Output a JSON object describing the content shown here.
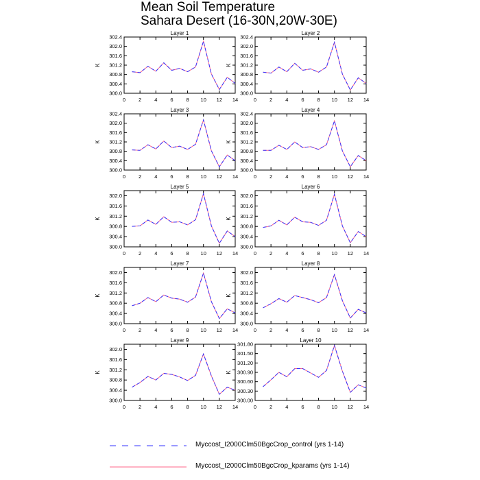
{
  "title_line1": "Mean Soil Temperature",
  "title_line2": "Sahara Desert (16-30N,20W-30E)",
  "legend": [
    {
      "label": "Myccost_I2000Clm50BgcCrop_control (yrs 1-14)",
      "color": "#3333ff",
      "dash": true
    },
    {
      "label": "Myccost_I2000Clm50BgcCrop_kparams (yrs 1-14)",
      "color": "#ff6688",
      "dash": false
    }
  ],
  "chart_data": [
    {
      "type": "line",
      "title": "Layer 1",
      "ylabel": "K",
      "xlim": [
        0,
        14
      ],
      "ylim": [
        300.0,
        302.4
      ],
      "xticks": [
        "0",
        "2",
        "4",
        "6",
        "8",
        "10",
        "12",
        "14"
      ],
      "yticks": [
        "300.0",
        "300.4",
        "300.8",
        "301.2",
        "301.6",
        "302.0",
        "302.4"
      ],
      "x": [
        1,
        2,
        3,
        4,
        5,
        6,
        7,
        8,
        9,
        10,
        11,
        12,
        13,
        14
      ],
      "series": [
        {
          "name": "Myccost_I2000Clm50BgcCrop_control (yrs 1-14)",
          "values": [
            300.92,
            300.88,
            301.15,
            300.94,
            301.3,
            300.98,
            301.06,
            300.92,
            301.12,
            302.22,
            300.82,
            300.16,
            300.68,
            300.42
          ]
        },
        {
          "name": "Myccost_I2000Clm50BgcCrop_kparams (yrs 1-14)",
          "values": [
            300.92,
            300.88,
            301.15,
            300.94,
            301.3,
            300.98,
            301.06,
            300.92,
            301.12,
            302.22,
            300.82,
            300.16,
            300.68,
            300.42
          ]
        }
      ]
    },
    {
      "type": "line",
      "title": "Layer 2",
      "ylabel": "K",
      "xlim": [
        0,
        14
      ],
      "ylim": [
        300.0,
        302.4
      ],
      "xticks": [
        "0",
        "2",
        "4",
        "6",
        "8",
        "10",
        "12",
        "14"
      ],
      "yticks": [
        "300.0",
        "300.4",
        "300.8",
        "301.2",
        "301.6",
        "302.0",
        "302.4"
      ],
      "x": [
        1,
        2,
        3,
        4,
        5,
        6,
        7,
        8,
        9,
        10,
        11,
        12,
        13,
        14
      ],
      "series": [
        {
          "name": "Myccost_I2000Clm50BgcCrop_control (yrs 1-14)",
          "values": [
            300.9,
            300.86,
            301.12,
            300.92,
            301.28,
            300.98,
            301.04,
            300.9,
            301.12,
            302.18,
            300.82,
            300.14,
            300.66,
            300.42
          ]
        },
        {
          "name": "Myccost_I2000Clm50BgcCrop_kparams (yrs 1-14)",
          "values": [
            300.9,
            300.86,
            301.12,
            300.92,
            301.28,
            300.98,
            301.04,
            300.9,
            301.12,
            302.18,
            300.82,
            300.14,
            300.66,
            300.42
          ]
        }
      ]
    },
    {
      "type": "line",
      "title": "Layer 3",
      "ylabel": "K",
      "xlim": [
        0,
        14
      ],
      "ylim": [
        300.0,
        302.4
      ],
      "xticks": [
        "0",
        "2",
        "4",
        "6",
        "8",
        "10",
        "12",
        "14"
      ],
      "yticks": [
        "300.0",
        "300.4",
        "300.8",
        "301.2",
        "301.6",
        "302.0",
        "302.4"
      ],
      "x": [
        1,
        2,
        3,
        4,
        5,
        6,
        7,
        8,
        9,
        10,
        11,
        12,
        13,
        14
      ],
      "series": [
        {
          "name": "Myccost_I2000Clm50BgcCrop_control (yrs 1-14)",
          "values": [
            300.86,
            300.84,
            301.08,
            300.9,
            301.24,
            300.96,
            301.02,
            300.88,
            301.1,
            302.14,
            300.82,
            300.14,
            300.64,
            300.4
          ]
        },
        {
          "name": "Myccost_I2000Clm50BgcCrop_kparams (yrs 1-14)",
          "values": [
            300.86,
            300.84,
            301.08,
            300.9,
            301.24,
            300.96,
            301.02,
            300.88,
            301.1,
            302.14,
            300.82,
            300.14,
            300.64,
            300.4
          ]
        }
      ]
    },
    {
      "type": "line",
      "title": "Layer 4",
      "ylabel": "K",
      "xlim": [
        0,
        14
      ],
      "ylim": [
        300.0,
        302.4
      ],
      "xticks": [
        "0",
        "2",
        "4",
        "6",
        "8",
        "10",
        "12",
        "14"
      ],
      "yticks": [
        "300.0",
        "300.4",
        "300.8",
        "301.2",
        "301.6",
        "302.0",
        "302.4"
      ],
      "x": [
        1,
        2,
        3,
        4,
        5,
        6,
        7,
        8,
        9,
        10,
        11,
        12,
        13,
        14
      ],
      "series": [
        {
          "name": "Myccost_I2000Clm50BgcCrop_control (yrs 1-14)",
          "values": [
            300.84,
            300.84,
            301.06,
            300.88,
            301.2,
            300.96,
            301.0,
            300.88,
            301.08,
            302.1,
            300.82,
            300.14,
            300.62,
            300.4
          ]
        },
        {
          "name": "Myccost_I2000Clm50BgcCrop_kparams (yrs 1-14)",
          "values": [
            300.84,
            300.84,
            301.06,
            300.88,
            301.2,
            300.96,
            301.0,
            300.88,
            301.08,
            302.1,
            300.82,
            300.14,
            300.62,
            300.4
          ]
        }
      ]
    },
    {
      "type": "line",
      "title": "Layer 5",
      "ylabel": "K",
      "xlim": [
        0,
        14
      ],
      "ylim": [
        300.0,
        302.2
      ],
      "xticks": [
        "0",
        "2",
        "4",
        "6",
        "8",
        "10",
        "12",
        "14"
      ],
      "yticks": [
        "300.0",
        "300.4",
        "300.8",
        "301.2",
        "301.6",
        "302.0"
      ],
      "x": [
        1,
        2,
        3,
        4,
        5,
        6,
        7,
        8,
        9,
        10,
        11,
        12,
        13,
        14
      ],
      "series": [
        {
          "name": "Myccost_I2000Clm50BgcCrop_control (yrs 1-14)",
          "values": [
            300.8,
            300.82,
            301.05,
            300.88,
            301.18,
            300.96,
            300.98,
            300.86,
            301.06,
            302.08,
            300.82,
            300.14,
            300.62,
            300.4
          ]
        },
        {
          "name": "Myccost_I2000Clm50BgcCrop_kparams (yrs 1-14)",
          "values": [
            300.8,
            300.82,
            301.05,
            300.88,
            301.18,
            300.96,
            300.98,
            300.86,
            301.06,
            302.08,
            300.82,
            300.14,
            300.62,
            300.4
          ]
        }
      ]
    },
    {
      "type": "line",
      "title": "Layer 6",
      "ylabel": "K",
      "xlim": [
        0,
        14
      ],
      "ylim": [
        300.0,
        302.2
      ],
      "xticks": [
        "0",
        "2",
        "4",
        "6",
        "8",
        "10",
        "12",
        "14"
      ],
      "yticks": [
        "300.0",
        "300.4",
        "300.8",
        "301.2",
        "301.6",
        "302.0"
      ],
      "x": [
        1,
        2,
        3,
        4,
        5,
        6,
        7,
        8,
        9,
        10,
        11,
        12,
        13,
        14
      ],
      "series": [
        {
          "name": "Myccost_I2000Clm50BgcCrop_control (yrs 1-14)",
          "values": [
            300.76,
            300.82,
            301.04,
            300.86,
            301.16,
            300.98,
            300.96,
            300.84,
            301.04,
            302.06,
            300.82,
            300.16,
            300.6,
            300.4
          ]
        },
        {
          "name": "Myccost_I2000Clm50BgcCrop_kparams (yrs 1-14)",
          "values": [
            300.76,
            300.82,
            301.04,
            300.86,
            301.16,
            300.98,
            300.96,
            300.84,
            301.04,
            302.06,
            300.82,
            300.16,
            300.6,
            300.4
          ]
        }
      ]
    },
    {
      "type": "line",
      "title": "Layer 7",
      "ylabel": "K",
      "xlim": [
        0,
        14
      ],
      "ylim": [
        300.0,
        302.2
      ],
      "xticks": [
        "0",
        "2",
        "4",
        "6",
        "8",
        "10",
        "12",
        "14"
      ],
      "yticks": [
        "300.0",
        "300.4",
        "300.8",
        "301.2",
        "301.6",
        "302.0"
      ],
      "x": [
        1,
        2,
        3,
        4,
        5,
        6,
        7,
        8,
        9,
        10,
        11,
        12,
        13,
        14
      ],
      "series": [
        {
          "name": "Myccost_I2000Clm50BgcCrop_control (yrs 1-14)",
          "values": [
            300.7,
            300.8,
            301.02,
            300.86,
            301.12,
            301.0,
            300.96,
            300.84,
            301.04,
            301.98,
            300.86,
            300.2,
            300.58,
            300.42
          ]
        },
        {
          "name": "Myccost_I2000Clm50BgcCrop_kparams (yrs 1-14)",
          "values": [
            300.7,
            300.8,
            301.02,
            300.86,
            301.12,
            301.0,
            300.96,
            300.84,
            301.04,
            301.98,
            300.86,
            300.2,
            300.58,
            300.42
          ]
        }
      ]
    },
    {
      "type": "line",
      "title": "Layer 8",
      "ylabel": "K",
      "xlim": [
        0,
        14
      ],
      "ylim": [
        300.0,
        302.2
      ],
      "xticks": [
        "0",
        "2",
        "4",
        "6",
        "8",
        "10",
        "12",
        "14"
      ],
      "yticks": [
        "300.0",
        "300.4",
        "300.8",
        "301.2",
        "301.6",
        "302.0"
      ],
      "x": [
        1,
        2,
        3,
        4,
        5,
        6,
        7,
        8,
        9,
        10,
        11,
        12,
        13,
        14
      ],
      "series": [
        {
          "name": "Myccost_I2000Clm50BgcCrop_control (yrs 1-14)",
          "values": [
            300.62,
            300.78,
            300.98,
            300.84,
            301.1,
            301.02,
            300.94,
            300.82,
            301.02,
            301.92,
            300.9,
            300.22,
            300.56,
            300.42
          ]
        },
        {
          "name": "Myccost_I2000Clm50BgcCrop_kparams (yrs 1-14)",
          "values": [
            300.62,
            300.78,
            300.98,
            300.84,
            301.1,
            301.02,
            300.94,
            300.82,
            301.02,
            301.92,
            300.9,
            300.22,
            300.56,
            300.42
          ]
        }
      ]
    },
    {
      "type": "line",
      "title": "Layer 9",
      "ylabel": "K",
      "xlim": [
        0,
        14
      ],
      "ylim": [
        300.0,
        302.2
      ],
      "xticks": [
        "0",
        "2",
        "4",
        "6",
        "8",
        "10",
        "12",
        "14"
      ],
      "yticks": [
        "300.0",
        "300.4",
        "300.8",
        "301.2",
        "301.6",
        "302.0"
      ],
      "x": [
        1,
        2,
        3,
        4,
        5,
        6,
        7,
        8,
        9,
        10,
        11,
        12,
        13,
        14
      ],
      "series": [
        {
          "name": "Myccost_I2000Clm50BgcCrop_control (yrs 1-14)",
          "values": [
            300.52,
            300.7,
            300.94,
            300.8,
            301.06,
            301.02,
            300.92,
            300.78,
            300.98,
            301.82,
            300.96,
            300.24,
            300.52,
            300.4
          ]
        },
        {
          "name": "Myccost_I2000Clm50BgcCrop_kparams (yrs 1-14)",
          "values": [
            300.52,
            300.7,
            300.94,
            300.8,
            301.06,
            301.02,
            300.92,
            300.78,
            300.98,
            301.82,
            300.96,
            300.24,
            300.52,
            300.4
          ]
        }
      ]
    },
    {
      "type": "line",
      "title": "Layer 10",
      "ylabel": "K",
      "xlim": [
        0,
        14
      ],
      "ylim": [
        300.0,
        301.8
      ],
      "xticks": [
        "0",
        "2",
        "4",
        "6",
        "8",
        "10",
        "12",
        "14"
      ],
      "yticks": [
        "300.00",
        "300.30",
        "300.60",
        "300.90",
        "301.20",
        "301.50",
        "301.80"
      ],
      "x": [
        1,
        2,
        3,
        4,
        5,
        6,
        7,
        8,
        9,
        10,
        11,
        12,
        13,
        14
      ],
      "series": [
        {
          "name": "Myccost_I2000Clm50BgcCrop_control (yrs 1-14)",
          "values": [
            300.44,
            300.66,
            300.9,
            300.76,
            301.02,
            301.02,
            300.88,
            300.74,
            300.96,
            301.76,
            300.94,
            300.26,
            300.5,
            300.4
          ]
        },
        {
          "name": "Myccost_I2000Clm50BgcCrop_kparams (yrs 1-14)",
          "values": [
            300.44,
            300.66,
            300.9,
            300.76,
            301.02,
            301.02,
            300.88,
            300.74,
            300.96,
            301.76,
            300.94,
            300.26,
            300.5,
            300.4
          ]
        }
      ]
    }
  ]
}
